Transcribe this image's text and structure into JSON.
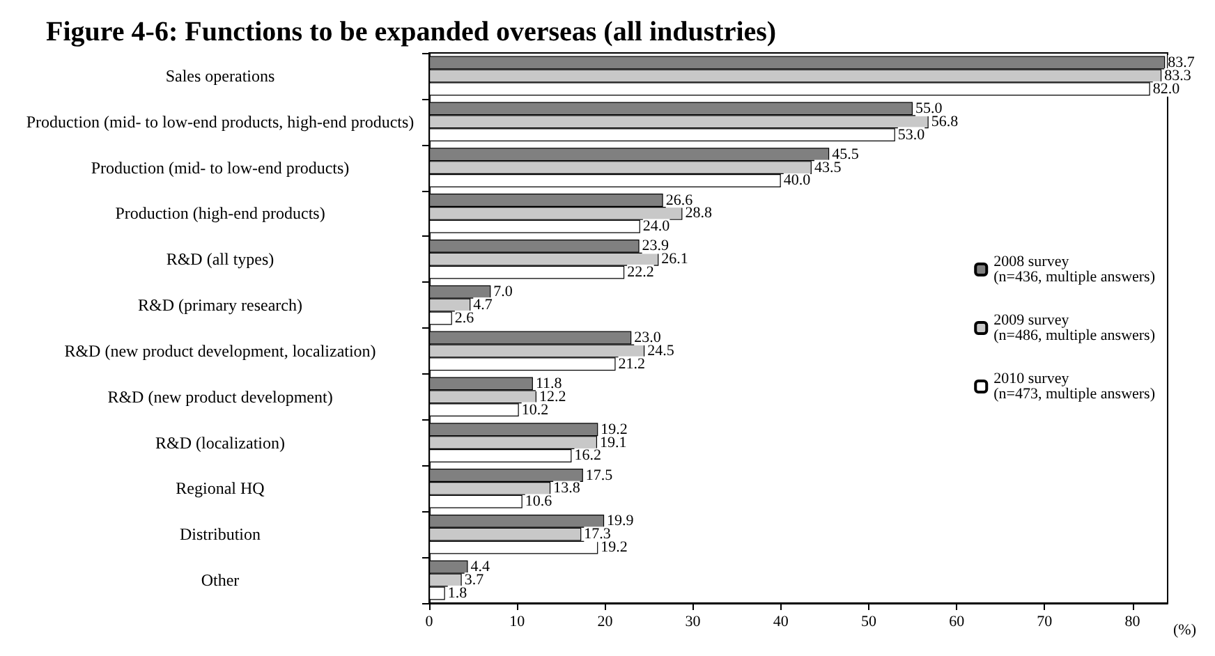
{
  "chart_data": {
    "type": "bar",
    "orientation": "horizontal",
    "title": "Figure 4-6: Functions to be expanded overseas (all industries)",
    "xlabel": "(%)",
    "categories": [
      "Sales operations",
      "Production (mid- to low-end products, high-end products)",
      "Production (mid- to low-end products)",
      "Production (high-end products)",
      "R&D (all types)",
      "R&D (primary research)",
      "R&D (new product development, localization)",
      "R&D (new product development)",
      "R&D (localization)",
      "Regional HQ",
      "Distribution",
      "Other"
    ],
    "series": [
      {
        "name": "2008 survey\n(n=436, multiple answers)",
        "color": "#808080",
        "values": [
          83.7,
          55.0,
          45.5,
          26.6,
          23.9,
          7.0,
          23.0,
          11.8,
          19.2,
          17.5,
          19.9,
          4.4
        ],
        "value_labels": [
          "83.7",
          "55.0",
          "45.5",
          "26.6",
          "23.9",
          "7.0",
          "23.0",
          "11.8",
          "19.2",
          "17.5",
          "19.9",
          "4.4"
        ]
      },
      {
        "name": "2009 survey\n(n=486, multiple answers)",
        "color": "#c8c8c8",
        "values": [
          83.3,
          56.8,
          43.5,
          28.8,
          26.1,
          4.7,
          24.5,
          12.2,
          19.1,
          13.8,
          17.3,
          3.7
        ],
        "value_labels": [
          "83.3",
          "56.8",
          "43.5",
          "28.8",
          "26.1",
          "4.7",
          "24.5",
          "12.2",
          "19.1",
          "13.8",
          "17.3",
          "3.7"
        ]
      },
      {
        "name": "2010 survey\n(n=473, multiple answers)",
        "color": "#ffffff",
        "values": [
          82.0,
          53.0,
          40.0,
          24.0,
          22.2,
          2.6,
          21.2,
          10.2,
          16.2,
          10.6,
          19.2,
          1.8
        ],
        "value_labels": [
          "82.0",
          "53.0",
          "40.0",
          "24.0",
          "22.2",
          "2.6",
          "21.2",
          "10.2",
          "16.2",
          "10.6",
          "19.2",
          "1.8"
        ]
      }
    ],
    "xlim": [
      0,
      84
    ],
    "xticks": [
      0,
      10,
      20,
      30,
      40,
      50,
      60,
      70,
      80
    ],
    "grid": false,
    "legend": "right"
  }
}
